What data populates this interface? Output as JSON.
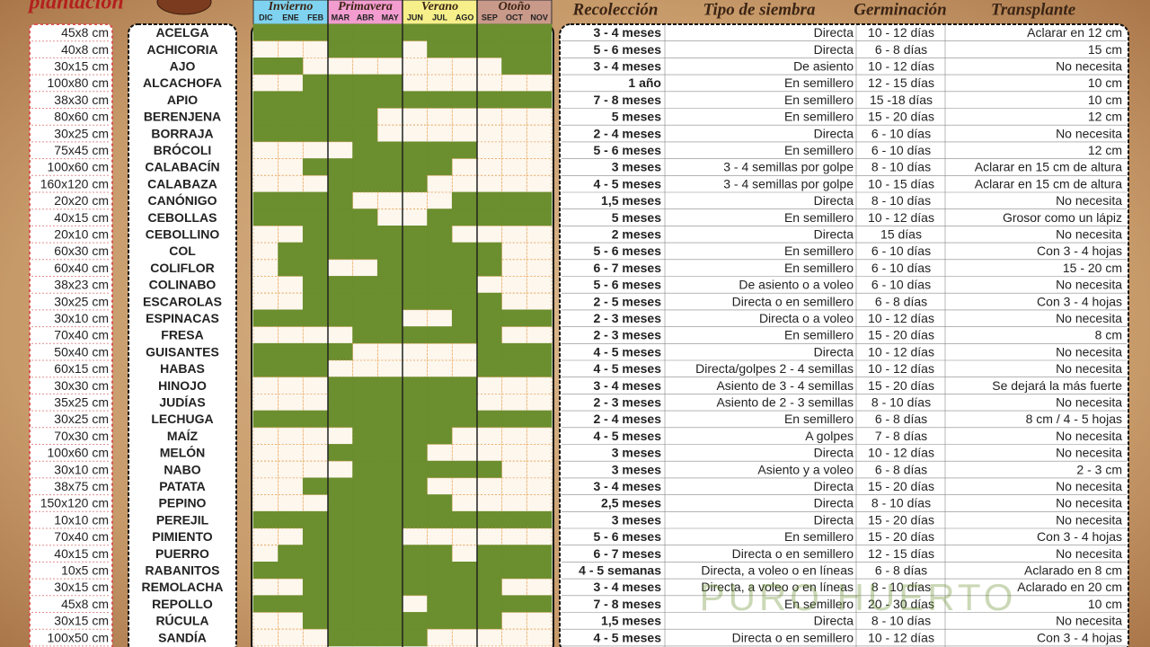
{
  "header": {
    "title": "plantación",
    "seasons": [
      "Invierno",
      "Primavera",
      "Verano",
      "Otoño"
    ],
    "months": [
      "DIC",
      "ENE",
      "FEB",
      "MAR",
      "ABR",
      "MAY",
      "JUN",
      "JUL",
      "AGO",
      "SEP",
      "OCT",
      "NOV"
    ],
    "columns": [
      "Recolección",
      "Tipo de siembra",
      "Germinación",
      "Transplante"
    ]
  },
  "watermark": "PURO HUERTO",
  "rows": [
    {
      "size": "45x8 cm",
      "name": "ACELGA",
      "harvest": "3 - 4 meses",
      "sowing": "Directa",
      "germination": "10 - 12 días",
      "transplant": "Aclarar en 12 cm",
      "months": [
        1,
        1,
        1,
        1,
        1,
        1,
        1,
        1,
        1,
        1,
        1,
        1
      ]
    },
    {
      "size": "40x8 cm",
      "name": "ACHICORIA",
      "harvest": "5 - 6 meses",
      "sowing": "Directa",
      "germination": "6 - 8 días",
      "transplant": "15 cm",
      "months": [
        0,
        0,
        0,
        1,
        1,
        1,
        0,
        1,
        1,
        1,
        1,
        1
      ]
    },
    {
      "size": "30x15 cm",
      "name": "AJO",
      "harvest": "3 - 4 meses",
      "sowing": "De asiento",
      "germination": "10 - 12 días",
      "transplant": "No necesita",
      "months": [
        1,
        1,
        0,
        0,
        0,
        0,
        0,
        0,
        0,
        0,
        1,
        1
      ]
    },
    {
      "size": "100x80 cm",
      "name": "ALCACHOFA",
      "harvest": "1 año",
      "sowing": "En semillero",
      "germination": "12 - 15 días",
      "transplant": "10 cm",
      "months": [
        0,
        0,
        1,
        1,
        1,
        1,
        0,
        0,
        0,
        0,
        0,
        0
      ]
    },
    {
      "size": "38x30 cm",
      "name": "APIO",
      "harvest": "7 - 8 meses",
      "sowing": "En semillero",
      "germination": "15 -18 días",
      "transplant": "10 cm",
      "months": [
        1,
        1,
        1,
        1,
        1,
        1,
        1,
        1,
        1,
        1,
        1,
        1
      ]
    },
    {
      "size": "80x60 cm",
      "name": "BERENJENA",
      "harvest": "5 meses",
      "sowing": "En semillero",
      "germination": "15 - 20 días",
      "transplant": "12 cm",
      "months": [
        1,
        1,
        1,
        1,
        1,
        0,
        0,
        0,
        0,
        0,
        0,
        0
      ]
    },
    {
      "size": "30x25 cm",
      "name": "BORRAJA",
      "harvest": "2 - 4 meses",
      "sowing": "Directa",
      "germination": "6 - 10 días",
      "transplant": "No necesita",
      "months": [
        1,
        1,
        1,
        1,
        1,
        0,
        0,
        0,
        0,
        0,
        0,
        0
      ]
    },
    {
      "size": "75x45 cm",
      "name": "BRÓCOLI",
      "harvest": "5 - 6 meses",
      "sowing": "En semillero",
      "germination": "6 - 10 días",
      "transplant": "12 cm",
      "months": [
        0,
        0,
        0,
        0,
        1,
        1,
        1,
        1,
        1,
        0,
        0,
        0
      ]
    },
    {
      "size": "100x60 cm",
      "name": "CALABACÍN",
      "harvest": "3 meses",
      "sowing": "3 - 4 semillas por golpe",
      "germination": "8 - 10 días",
      "transplant": "Aclarar en 15 cm de altura",
      "months": [
        0,
        0,
        1,
        1,
        1,
        1,
        1,
        1,
        0,
        0,
        0,
        0
      ]
    },
    {
      "size": "160x120 cm",
      "name": "CALABAZA",
      "harvest": "4 - 5 meses",
      "sowing": "3 - 4 semillas por golpe",
      "germination": "10 - 15 días",
      "transplant": "Aclarar en 15 cm de altura",
      "months": [
        0,
        0,
        0,
        1,
        1,
        1,
        1,
        0,
        0,
        0,
        0,
        0
      ]
    },
    {
      "size": "20x20 cm",
      "name": "CANÓNIGO",
      "harvest": "1,5 meses",
      "sowing": "Directa",
      "germination": "8 - 10 días",
      "transplant": "No necesita",
      "months": [
        1,
        1,
        1,
        1,
        0,
        0,
        0,
        0,
        1,
        1,
        1,
        1
      ]
    },
    {
      "size": "40x15 cm",
      "name": "CEBOLLAS",
      "harvest": "5 meses",
      "sowing": "En semillero",
      "germination": "10 - 12 días",
      "transplant": "Grosor como un lápiz",
      "months": [
        1,
        1,
        1,
        1,
        1,
        0,
        0,
        1,
        1,
        1,
        1,
        1
      ]
    },
    {
      "size": "20x10 cm",
      "name": "CEBOLLINO",
      "harvest": "2 meses",
      "sowing": "Directa",
      "germination": "15 días",
      "transplant": "No necesita",
      "months": [
        0,
        0,
        1,
        1,
        1,
        1,
        1,
        1,
        0,
        0,
        0,
        0
      ]
    },
    {
      "size": "60x30 cm",
      "name": "COL",
      "harvest": "5 - 6 meses",
      "sowing": "En semillero",
      "germination": "6 - 10 días",
      "transplant": "Con 3 - 4 hojas",
      "months": [
        0,
        1,
        1,
        1,
        1,
        1,
        1,
        1,
        1,
        1,
        0,
        0
      ]
    },
    {
      "size": "60x40 cm",
      "name": "COLIFLOR",
      "harvest": "6 - 7 meses",
      "sowing": "En semillero",
      "germination": "6 - 10 días",
      "transplant": "15 - 20 cm",
      "months": [
        0,
        1,
        1,
        0,
        0,
        1,
        1,
        1,
        1,
        1,
        0,
        0
      ]
    },
    {
      "size": "38x23 cm",
      "name": "COLINABO",
      "harvest": "5 - 6 meses",
      "sowing": "De asiento o a voleo",
      "germination": "6 - 10 días",
      "transplant": "No necesita",
      "months": [
        0,
        0,
        1,
        1,
        1,
        1,
        1,
        1,
        1,
        0,
        0,
        0
      ]
    },
    {
      "size": "30x25 cm",
      "name": "ESCAROLAS",
      "harvest": "2 - 5 meses",
      "sowing": "Directa o en semillero",
      "germination": "6 - 8 días",
      "transplant": "Con 3 - 4 hojas",
      "months": [
        0,
        0,
        1,
        1,
        1,
        1,
        1,
        1,
        1,
        1,
        0,
        0
      ]
    },
    {
      "size": "30x10 cm",
      "name": "ESPINACAS",
      "harvest": "2 - 3 meses",
      "sowing": "Directa o a voleo",
      "germination": "10 - 12 días",
      "transplant": "No necesita",
      "months": [
        1,
        1,
        1,
        1,
        1,
        1,
        0,
        0,
        1,
        1,
        1,
        1
      ]
    },
    {
      "size": "70x40 cm",
      "name": "FRESA",
      "harvest": "2 - 3 meses",
      "sowing": "En semillero",
      "germination": "15 - 20 días",
      "transplant": "8 cm",
      "months": [
        0,
        0,
        0,
        0,
        1,
        1,
        1,
        1,
        1,
        1,
        0,
        0
      ]
    },
    {
      "size": "50x40 cm",
      "name": "GUISANTES",
      "harvest": "4 - 5 meses",
      "sowing": "Directa",
      "germination": "10 - 12 días",
      "transplant": "No necesita",
      "months": [
        1,
        1,
        1,
        1,
        0,
        0,
        0,
        0,
        0,
        1,
        1,
        1
      ]
    },
    {
      "size": "60x15 cm",
      "name": "HABAS",
      "harvest": "4 - 5 meses",
      "sowing": "Directa/golpes 2 - 4 semillas",
      "germination": "10 - 12 días",
      "transplant": "No necesita",
      "months": [
        1,
        1,
        1,
        0,
        0,
        0,
        0,
        0,
        0,
        1,
        1,
        1
      ]
    },
    {
      "size": "30x30 cm",
      "name": "HINOJO",
      "harvest": "3 - 4 meses",
      "sowing": "Asiento de 3 - 4 semillas",
      "germination": "15 - 20 días",
      "transplant": "Se dejará la más fuerte",
      "months": [
        0,
        0,
        0,
        1,
        1,
        1,
        1,
        1,
        1,
        0,
        0,
        0
      ]
    },
    {
      "size": "35x25 cm",
      "name": "JUDÍAS",
      "harvest": "2 - 3 meses",
      "sowing": "Asiento de 2 - 3 semillas",
      "germination": "8 - 10 días",
      "transplant": "No necesita",
      "months": [
        0,
        0,
        0,
        1,
        1,
        1,
        1,
        1,
        1,
        0,
        0,
        0
      ]
    },
    {
      "size": "30x25 cm",
      "name": "LECHUGA",
      "harvest": "2 - 4 meses",
      "sowing": "En semillero",
      "germination": "6 - 8 días",
      "transplant": "8 cm / 4 - 5 hojas",
      "months": [
        1,
        1,
        1,
        1,
        1,
        1,
        1,
        1,
        1,
        1,
        1,
        1
      ]
    },
    {
      "size": "70x30 cm",
      "name": "MAÍZ",
      "harvest": "4 - 5 meses",
      "sowing": "A golpes",
      "germination": "7 - 8 días",
      "transplant": "No necesita",
      "months": [
        0,
        0,
        0,
        0,
        1,
        1,
        1,
        1,
        0,
        0,
        0,
        0
      ]
    },
    {
      "size": "100x60 cm",
      "name": "MELÓN",
      "harvest": "3 meses",
      "sowing": "Directa",
      "germination": "10 - 12 días",
      "transplant": "No necesita",
      "months": [
        0,
        0,
        0,
        1,
        1,
        1,
        1,
        0,
        0,
        0,
        0,
        0
      ]
    },
    {
      "size": "30x10 cm",
      "name": "NABO",
      "harvest": "3 meses",
      "sowing": "Asiento y a voleo",
      "germination": "6 - 8 días",
      "transplant": "2 - 3 cm",
      "months": [
        0,
        0,
        0,
        0,
        1,
        1,
        1,
        1,
        1,
        1,
        0,
        0
      ]
    },
    {
      "size": "38x75 cm",
      "name": "PATATA",
      "harvest": "3 - 4 meses",
      "sowing": "Directa",
      "germination": "15 - 20 días",
      "transplant": "No necesita",
      "months": [
        0,
        0,
        1,
        1,
        1,
        1,
        1,
        0,
        0,
        0,
        0,
        0
      ]
    },
    {
      "size": "150x120 cm",
      "name": "PEPINO",
      "harvest": "2,5 meses",
      "sowing": "Directa",
      "germination": "8 - 10 días",
      "transplant": "No necesita",
      "months": [
        0,
        0,
        0,
        1,
        1,
        1,
        1,
        1,
        0,
        0,
        0,
        0
      ]
    },
    {
      "size": "10x10 cm",
      "name": "PEREJIL",
      "harvest": "3 meses",
      "sowing": "Directa",
      "germination": "15 - 20 días",
      "transplant": "No necesita",
      "months": [
        1,
        1,
        1,
        1,
        1,
        1,
        1,
        1,
        1,
        1,
        1,
        1
      ]
    },
    {
      "size": "70x40 cm",
      "name": "PIMIENTO",
      "harvest": "5 - 6 meses",
      "sowing": "En semillero",
      "germination": "15 - 20 días",
      "transplant": "Con 3 - 4 hojas",
      "months": [
        0,
        0,
        1,
        1,
        1,
        1,
        0,
        0,
        0,
        0,
        0,
        0
      ]
    },
    {
      "size": "40x15 cm",
      "name": "PUERRO",
      "harvest": "6 - 7 meses",
      "sowing": "Directa o en semillero",
      "germination": "12 - 15 días",
      "transplant": "No necesita",
      "months": [
        0,
        1,
        1,
        1,
        1,
        1,
        1,
        1,
        0,
        1,
        1,
        1
      ]
    },
    {
      "size": "10x5 cm",
      "name": "RABANITOS",
      "harvest": "4 - 5 semanas",
      "sowing": "Directa, a voleo o en líneas",
      "germination": "6 - 8 días",
      "transplant": "Aclarado en 8 cm",
      "months": [
        1,
        1,
        1,
        1,
        1,
        1,
        1,
        1,
        1,
        1,
        1,
        1
      ]
    },
    {
      "size": "30x15 cm",
      "name": "REMOLACHA",
      "harvest": "3 - 4 meses",
      "sowing": "Directa, a voleo o en líneas",
      "germination": "8 - 10 días",
      "transplant": "Aclarado en 20 cm",
      "months": [
        0,
        0,
        1,
        1,
        1,
        1,
        1,
        1,
        1,
        1,
        0,
        0
      ]
    },
    {
      "size": "45x8 cm",
      "name": "REPOLLO",
      "harvest": "7 - 8 meses",
      "sowing": "En semillero",
      "germination": "20 - 30 días",
      "transplant": "10 cm",
      "months": [
        1,
        1,
        1,
        1,
        1,
        1,
        0,
        1,
        1,
        1,
        1,
        1
      ]
    },
    {
      "size": "30x15 cm",
      "name": "RÚCULA",
      "harvest": "1,5 meses",
      "sowing": "Directa",
      "germination": "8 - 10 días",
      "transplant": "No necesita",
      "months": [
        0,
        0,
        1,
        1,
        1,
        1,
        1,
        1,
        1,
        1,
        0,
        0
      ]
    },
    {
      "size": "100x50 cm",
      "name": "SANDÍA",
      "harvest": "4 - 5 meses",
      "sowing": "Directa o en semillero",
      "germination": "10 - 12 días",
      "transplant": "Con 3 - 4 hojas",
      "months": [
        0,
        0,
        0,
        1,
        1,
        1,
        1,
        0,
        0,
        0,
        0,
        0
      ]
    }
  ]
}
